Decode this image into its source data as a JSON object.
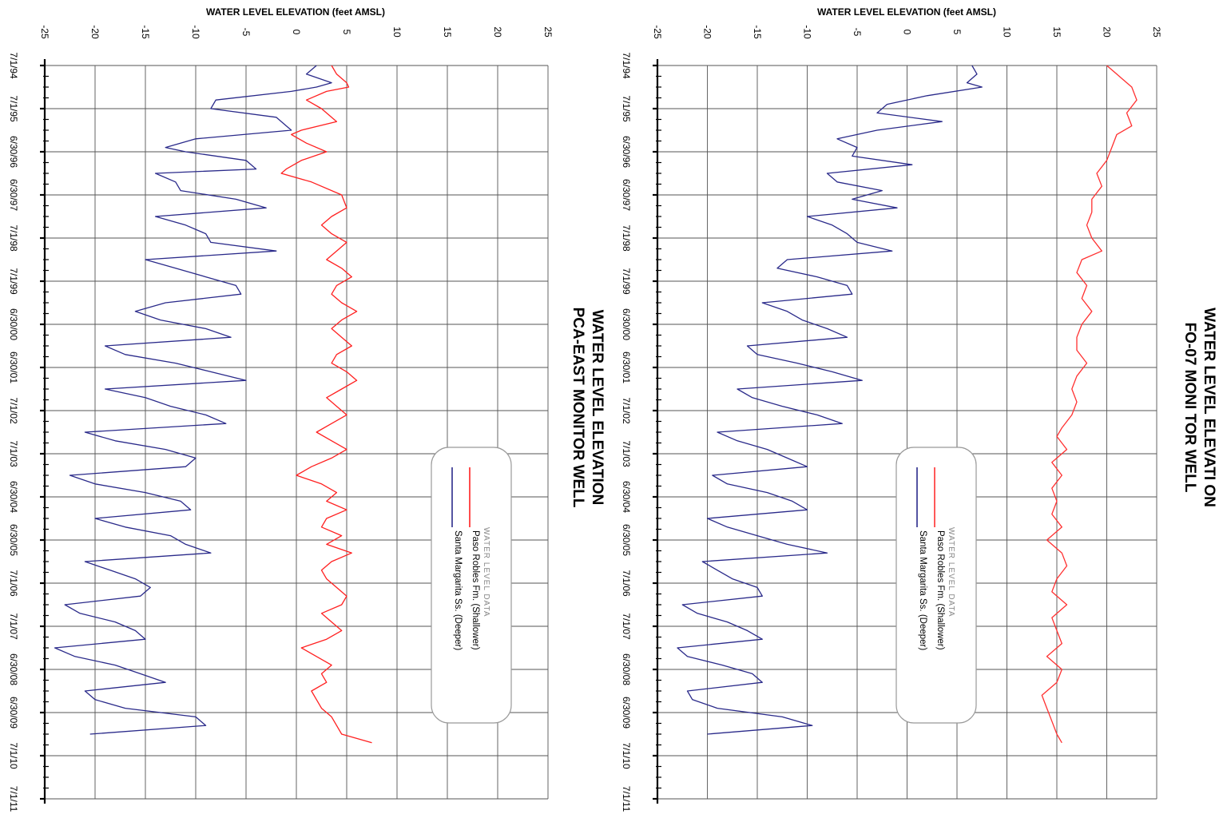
{
  "chart_data": [
    {
      "type": "line",
      "title_lines": [
        "WATER LEVEL ELEVATION",
        "PCA-EAST MONITOR WELL"
      ],
      "ylabel": "WATER LEVEL ELEVATION (feet AMSL)",
      "ylim": [
        -25,
        25
      ],
      "y_ticks": [
        "-25",
        "-20",
        "-15",
        "-10",
        "-5",
        "0",
        "5",
        "10",
        "15",
        "20",
        "25"
      ],
      "x_tick_labels": [
        "7/1/94",
        "7/1/95",
        "6/30/96",
        "6/30/97",
        "7/1/98",
        "7/1/99",
        "6/30/00",
        "6/30/01",
        "7/1/02",
        "7/1/03",
        "6/30/04",
        "6/30/05",
        "7/1/06",
        "7/1/07",
        "6/30/08",
        "6/30/09",
        "7/1/10",
        "7/1/11"
      ],
      "x_range_years": [
        1994.5,
        2011.5
      ],
      "grid": true,
      "legend": {
        "title": "WATER LEVEL DATA",
        "items": [
          "Paso Robles Fm. (Shallower)",
          "Santa Margarita Ss. (Deeper)"
        ]
      },
      "series": [
        {
          "name": "Paso Robles Fm. (Shallower)",
          "color": "#ff2020",
          "x": [
            1994.5,
            1994.7,
            1994.9,
            1995.0,
            1995.1,
            1995.3,
            1995.5,
            1995.8,
            1996.0,
            1996.1,
            1996.3,
            1996.5,
            1996.7,
            1996.9,
            1997.0,
            1997.2,
            1997.5,
            1997.8,
            1998.0,
            1998.2,
            1998.4,
            1998.6,
            1998.8,
            1999.0,
            1999.2,
            1999.4,
            1999.6,
            1999.8,
            2000.0,
            2000.2,
            2000.4,
            2000.6,
            2000.8,
            2001.0,
            2001.2,
            2001.4,
            2001.6,
            2001.8,
            2002.0,
            2002.2,
            2002.4,
            2002.6,
            2002.8,
            2003.0,
            2003.2,
            2003.4,
            2003.6,
            2003.8,
            2004.0,
            2004.2,
            2004.4,
            2004.6,
            2004.8,
            2005.0,
            2005.2,
            2005.4,
            2005.6,
            2005.8,
            2006.0,
            2006.2,
            2006.4,
            2006.6,
            2006.8,
            2007.0,
            2007.2,
            2007.4,
            2007.6,
            2007.8,
            2008.0,
            2008.2,
            2008.4,
            2008.6,
            2008.8,
            2009.0,
            2009.2,
            2009.4,
            2009.6,
            2009.8,
            2010.0,
            2010.1,
            2010.2
          ],
          "y": [
            3.5,
            4.0,
            5.0,
            5.2,
            3.0,
            1.0,
            2.5,
            4.0,
            0.5,
            -0.5,
            1.0,
            3.0,
            0.5,
            -1.0,
            -1.5,
            1.5,
            4.5,
            5.0,
            3.5,
            2.5,
            3.5,
            5.0,
            4.0,
            3.0,
            4.5,
            5.5,
            4.0,
            3.5,
            4.5,
            6.0,
            4.5,
            3.5,
            4.5,
            5.5,
            4.0,
            3.5,
            5.0,
            6.0,
            4.5,
            3.0,
            4.0,
            5.0,
            3.5,
            2.0,
            3.5,
            5.0,
            3.5,
            1.5,
            0.0,
            2.5,
            4.0,
            3.0,
            5.0,
            3.0,
            2.5,
            4.5,
            3.0,
            5.5,
            3.5,
            2.5,
            3.0,
            4.0,
            5.0,
            4.5,
            2.5,
            3.5,
            4.5,
            3.0,
            0.5,
            2.0,
            3.5,
            2.5,
            3.0,
            1.5,
            2.0,
            2.5,
            3.5,
            4.0,
            4.5,
            6.0,
            7.5
          ]
        },
        {
          "name": "Santa Margarita Ss. (Deeper)",
          "color": "#2a2a8a",
          "x": [
            1994.5,
            1994.7,
            1994.9,
            1995.0,
            1995.1,
            1995.3,
            1995.5,
            1995.7,
            1995.9,
            1996.0,
            1996.2,
            1996.4,
            1996.5,
            1996.7,
            1996.9,
            1997.0,
            1997.2,
            1997.4,
            1997.6,
            1997.8,
            1998.0,
            1998.2,
            1998.4,
            1998.6,
            1998.8,
            1999.0,
            1999.2,
            1999.4,
            1999.6,
            1999.8,
            2000.0,
            2000.2,
            2000.4,
            2000.6,
            2000.8,
            2001.0,
            2001.2,
            2001.4,
            2001.6,
            2001.8,
            2002.0,
            2002.2,
            2002.4,
            2002.6,
            2002.8,
            2003.0,
            2003.2,
            2003.4,
            2003.6,
            2003.8,
            2004.0,
            2004.2,
            2004.4,
            2004.6,
            2004.8,
            2005.0,
            2005.2,
            2005.4,
            2005.6,
            2005.8,
            2006.0,
            2006.2,
            2006.4,
            2006.6,
            2006.8,
            2007.0,
            2007.2,
            2007.4,
            2007.6,
            2007.8,
            2008.0,
            2008.2,
            2008.4,
            2008.6,
            2008.8,
            2009.0,
            2009.2,
            2009.4,
            2009.6,
            2009.8,
            2010.0
          ],
          "y": [
            2.0,
            1.0,
            3.5,
            2.0,
            -0.5,
            -8.0,
            -8.5,
            -2.0,
            -1.0,
            -0.5,
            -10.0,
            -13.0,
            -11.0,
            -5.0,
            -4.0,
            -14.0,
            -12.0,
            -11.5,
            -6.0,
            -3.0,
            -14.0,
            -11.0,
            -9.0,
            -8.5,
            -2.0,
            -15.0,
            -12.0,
            -9.0,
            -6.0,
            -5.5,
            -13.0,
            -16.0,
            -13.5,
            -9.0,
            -6.5,
            -19.0,
            -17.0,
            -12.0,
            -8.5,
            -5.0,
            -19.0,
            -15.0,
            -12.5,
            -9.0,
            -7.0,
            -21.0,
            -18.0,
            -13.0,
            -10.0,
            -11.0,
            -22.5,
            -20.0,
            -15.0,
            -11.5,
            -10.5,
            -20.0,
            -17.0,
            -12.5,
            -11.0,
            -8.5,
            -21.0,
            -18.5,
            -16.0,
            -14.5,
            -15.5,
            -23.0,
            -21.5,
            -18.0,
            -16.0,
            -15.0,
            -24.0,
            -22.0,
            -18.0,
            -15.5,
            -13.0,
            -21.0,
            -20.0,
            -17.0,
            -10.0,
            -9.0,
            -20.5
          ]
        }
      ]
    },
    {
      "type": "line",
      "title_lines": [
        "WATER LEVEL ELEVATI ON",
        "FO-07 MONI TOR WELL"
      ],
      "ylabel": "WATER LEVEL ELEVATION (feet AMSL)",
      "ylim": [
        -25,
        25
      ],
      "y_ticks": [
        "-25",
        "-20",
        "-15",
        "-10",
        "-5",
        "0",
        "5",
        "10",
        "15",
        "20",
        "25"
      ],
      "x_tick_labels": [
        "7/1/94",
        "7/1/95",
        "6/30/96",
        "6/30/97",
        "7/1/98",
        "7/1/99",
        "6/30/00",
        "6/30/01",
        "7/1/02",
        "7/1/03",
        "6/30/04",
        "6/30/05",
        "7/1/06",
        "7/1/07",
        "6/30/08",
        "6/30/09",
        "7/1/10",
        "7/1/11"
      ],
      "x_range_years": [
        1994.5,
        2011.5
      ],
      "grid": true,
      "legend": {
        "title": "WATER LEVEL DATA",
        "items": [
          "Paso Robles Fm. (Shallower)",
          "Santa Margarita Ss. (Deeper)"
        ]
      },
      "series": [
        {
          "name": "Paso Robles Fm. (Shallower)",
          "color": "#ff3030",
          "x": [
            1994.5,
            1994.8,
            1995.0,
            1995.3,
            1995.6,
            1995.9,
            1996.1,
            1996.4,
            1996.7,
            1997.0,
            1997.3,
            1997.6,
            1997.9,
            1998.2,
            1998.5,
            1998.8,
            1999.0,
            1999.3,
            1999.6,
            1999.9,
            2000.2,
            2000.5,
            2000.8,
            2001.1,
            2001.4,
            2001.7,
            2002.0,
            2002.3,
            2002.6,
            2002.9,
            2003.1,
            2003.4,
            2003.7,
            2004.0,
            2004.3,
            2004.6,
            2004.9,
            2005.2,
            2005.5,
            2005.8,
            2006.1,
            2006.4,
            2006.7,
            2007.0,
            2007.3,
            2007.6,
            2007.9,
            2008.2,
            2008.5,
            2008.8,
            2009.1,
            2009.4,
            2009.7,
            2010.0,
            2010.2
          ],
          "y": [
            20.0,
            21.5,
            22.5,
            23.0,
            22.0,
            22.5,
            21.0,
            20.5,
            20.0,
            19.0,
            19.5,
            18.5,
            18.5,
            18.0,
            18.5,
            19.5,
            17.5,
            17.0,
            18.0,
            17.5,
            18.5,
            17.5,
            17.0,
            17.0,
            18.0,
            17.0,
            16.5,
            17.0,
            16.5,
            15.5,
            15.0,
            16.0,
            14.5,
            15.5,
            14.5,
            15.0,
            14.5,
            15.5,
            14.0,
            15.5,
            16.0,
            15.0,
            14.5,
            16.0,
            14.5,
            15.0,
            15.5,
            14.0,
            15.5,
            15.0,
            13.5,
            14.0,
            14.5,
            15.0,
            15.5
          ]
        },
        {
          "name": "Santa Margarita Ss. (Deeper)",
          "color": "#2a2a8a",
          "x": [
            1994.5,
            1994.7,
            1994.9,
            1995.0,
            1995.2,
            1995.4,
            1995.6,
            1995.8,
            1996.0,
            1996.2,
            1996.4,
            1996.6,
            1996.8,
            1997.0,
            1997.2,
            1997.4,
            1997.6,
            1997.8,
            1998.0,
            1998.2,
            1998.4,
            1998.6,
            1998.8,
            1999.0,
            1999.2,
            1999.4,
            1999.6,
            1999.8,
            2000.0,
            2000.2,
            2000.4,
            2000.6,
            2000.8,
            2001.0,
            2001.2,
            2001.4,
            2001.6,
            2001.8,
            2002.0,
            2002.2,
            2002.4,
            2002.6,
            2002.8,
            2003.0,
            2003.2,
            2003.4,
            2003.6,
            2003.8,
            2004.0,
            2004.2,
            2004.4,
            2004.6,
            2004.8,
            2005.0,
            2005.2,
            2005.4,
            2005.6,
            2005.8,
            2006.0,
            2006.2,
            2006.4,
            2006.6,
            2006.8,
            2007.0,
            2007.2,
            2007.4,
            2007.6,
            2007.8,
            2008.0,
            2008.2,
            2008.4,
            2008.6,
            2008.8,
            2009.0,
            2009.2,
            2009.4,
            2009.6,
            2009.8,
            2010.0
          ],
          "y": [
            6.5,
            7.0,
            6.0,
            7.5,
            2.0,
            -2.0,
            -3.0,
            3.5,
            -3.0,
            -7.0,
            -5.0,
            -5.5,
            0.5,
            -8.0,
            -7.0,
            -2.5,
            -5.5,
            -1.0,
            -10.0,
            -7.5,
            -6.0,
            -5.0,
            -1.5,
            -12.0,
            -13.0,
            -9.0,
            -6.0,
            -5.5,
            -14.5,
            -12.0,
            -10.5,
            -8.0,
            -6.0,
            -16.0,
            -15.0,
            -11.0,
            -7.5,
            -4.5,
            -17.0,
            -15.5,
            -12.5,
            -9.0,
            -6.5,
            -19.0,
            -17.0,
            -14.0,
            -12.0,
            -10.0,
            -19.5,
            -18.0,
            -14.0,
            -11.5,
            -10.0,
            -20.0,
            -18.0,
            -15.0,
            -12.0,
            -8.0,
            -20.5,
            -19.0,
            -17.5,
            -15.0,
            -14.5,
            -22.5,
            -21.0,
            -18.0,
            -16.0,
            -14.5,
            -23.0,
            -22.0,
            -18.5,
            -15.5,
            -14.5,
            -22.0,
            -21.5,
            -19.0,
            -12.5,
            -9.5,
            -20.0
          ]
        }
      ]
    }
  ]
}
